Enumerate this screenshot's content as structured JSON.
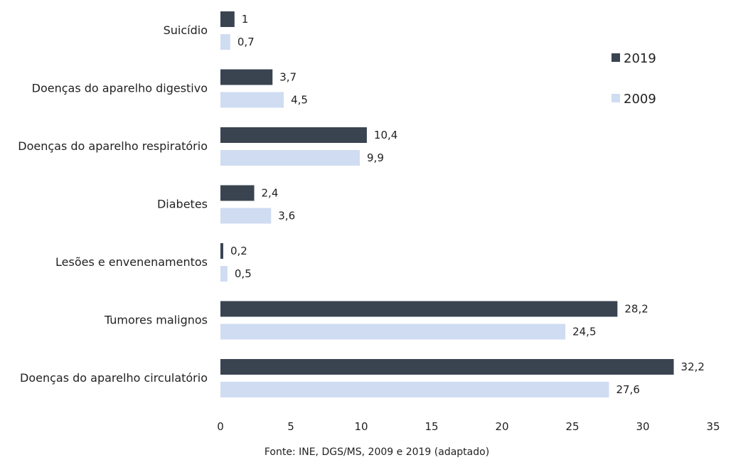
{
  "chart_data": {
    "type": "bar",
    "orientation": "horizontal",
    "categories": [
      "Suicídio",
      "Doenças do aparelho digestivo",
      "Doenças do aparelho respiratório",
      "Diabetes",
      "Lesões e envenenamentos",
      "Tumores malignos",
      "Doenças do aparelho circulatório"
    ],
    "series": [
      {
        "name": "2019",
        "color": "#3a4450",
        "values": [
          1,
          3.7,
          10.4,
          2.4,
          0.2,
          28.2,
          32.2
        ],
        "labels": [
          "1",
          "3,7",
          "10,4",
          "2,4",
          "0,2",
          "28,2",
          "32,2"
        ]
      },
      {
        "name": "2009",
        "color": "#cfdcf1",
        "values": [
          0.7,
          4.5,
          9.9,
          3.6,
          0.5,
          24.5,
          27.6
        ],
        "labels": [
          "0,7",
          "4,5",
          "9,9",
          "3,6",
          "0,5",
          "24,5",
          "27,6"
        ]
      }
    ],
    "xlim": [
      0,
      35
    ],
    "xticks": [
      "0",
      "5",
      "10",
      "15",
      "20",
      "25",
      "30",
      "35"
    ],
    "grid": false,
    "legend_position": "top-right",
    "source": "Fonte: INE, DGS/MS, 2009 e 2019 (adaptado)"
  }
}
